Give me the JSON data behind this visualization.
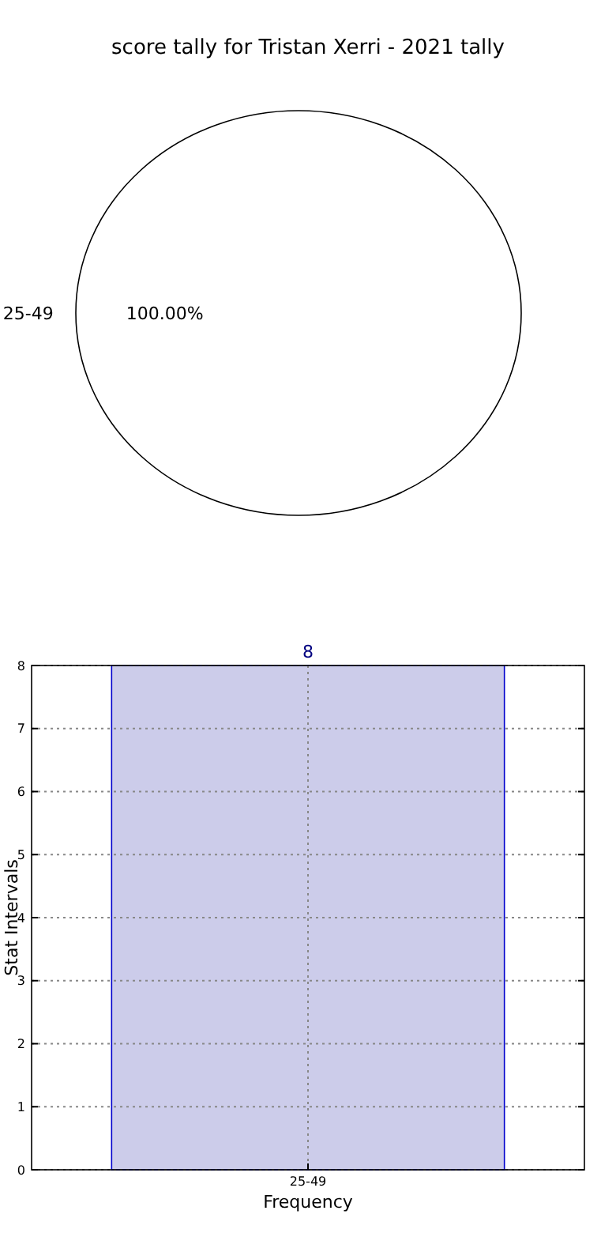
{
  "chart_data": [
    {
      "type": "pie",
      "title": "score tally for Tristan Xerri - 2021 tally",
      "categories": [
        "25-49"
      ],
      "values": [
        100
      ],
      "colors": [
        "#ffffff"
      ],
      "value_labels": [
        "100.00%"
      ]
    },
    {
      "type": "bar",
      "categories": [
        "25-49"
      ],
      "values": [
        8
      ],
      "color": "#ccccea",
      "ylim": [
        0,
        8
      ],
      "yticks": [
        0,
        1,
        2,
        3,
        4,
        5,
        6,
        7,
        8
      ],
      "grid": true,
      "data_labels": true,
      "xlabel": "Frequency",
      "ylabel": "Stat Intervals"
    }
  ]
}
